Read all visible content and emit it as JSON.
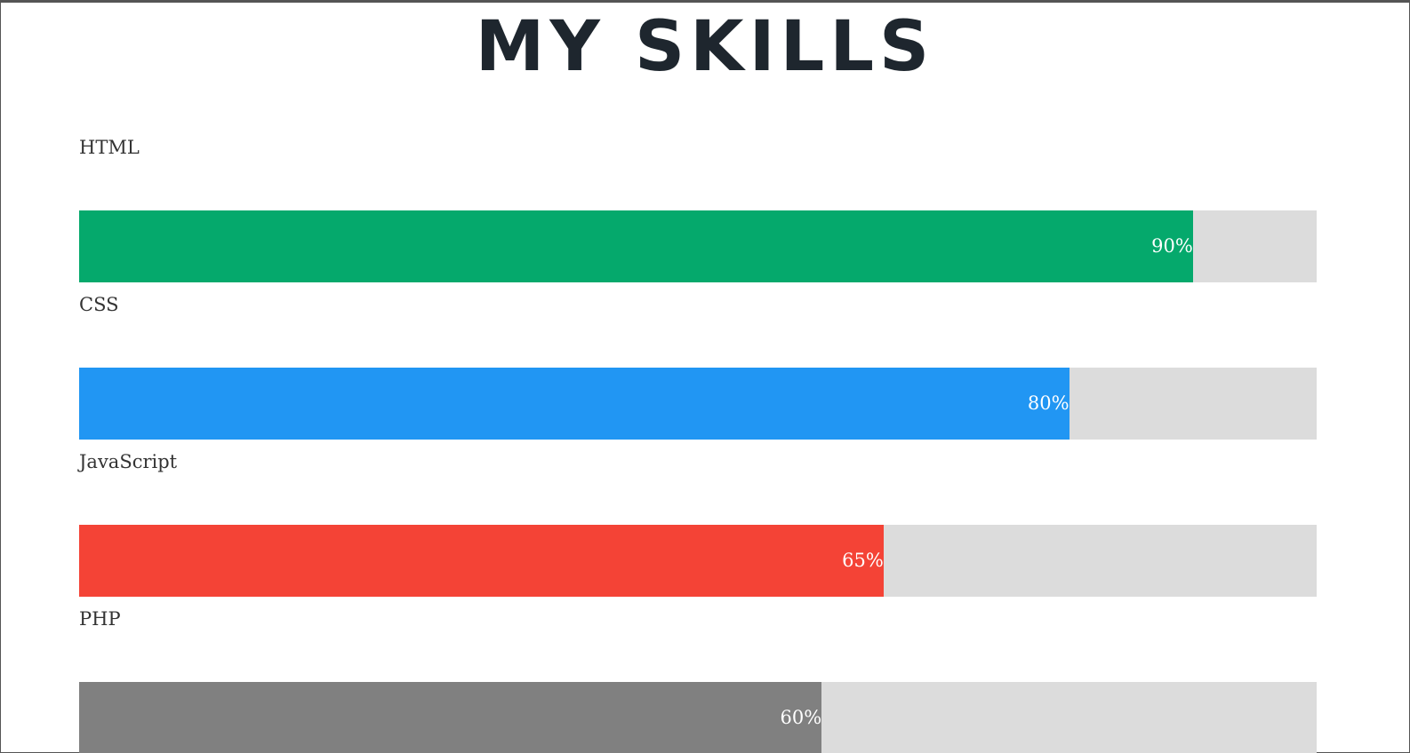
{
  "page": {
    "title": "MY SKILLS"
  },
  "skills": [
    {
      "label": "HTML",
      "percent": 90,
      "value_text": "90%",
      "color": "#05a96c"
    },
    {
      "label": "CSS",
      "percent": 80,
      "value_text": "80%",
      "color": "#2196f3"
    },
    {
      "label": "JavaScript",
      "percent": 65,
      "value_text": "65%",
      "color": "#f44336"
    },
    {
      "label": "PHP",
      "percent": 60,
      "value_text": "60%",
      "color": "#808080"
    }
  ]
}
